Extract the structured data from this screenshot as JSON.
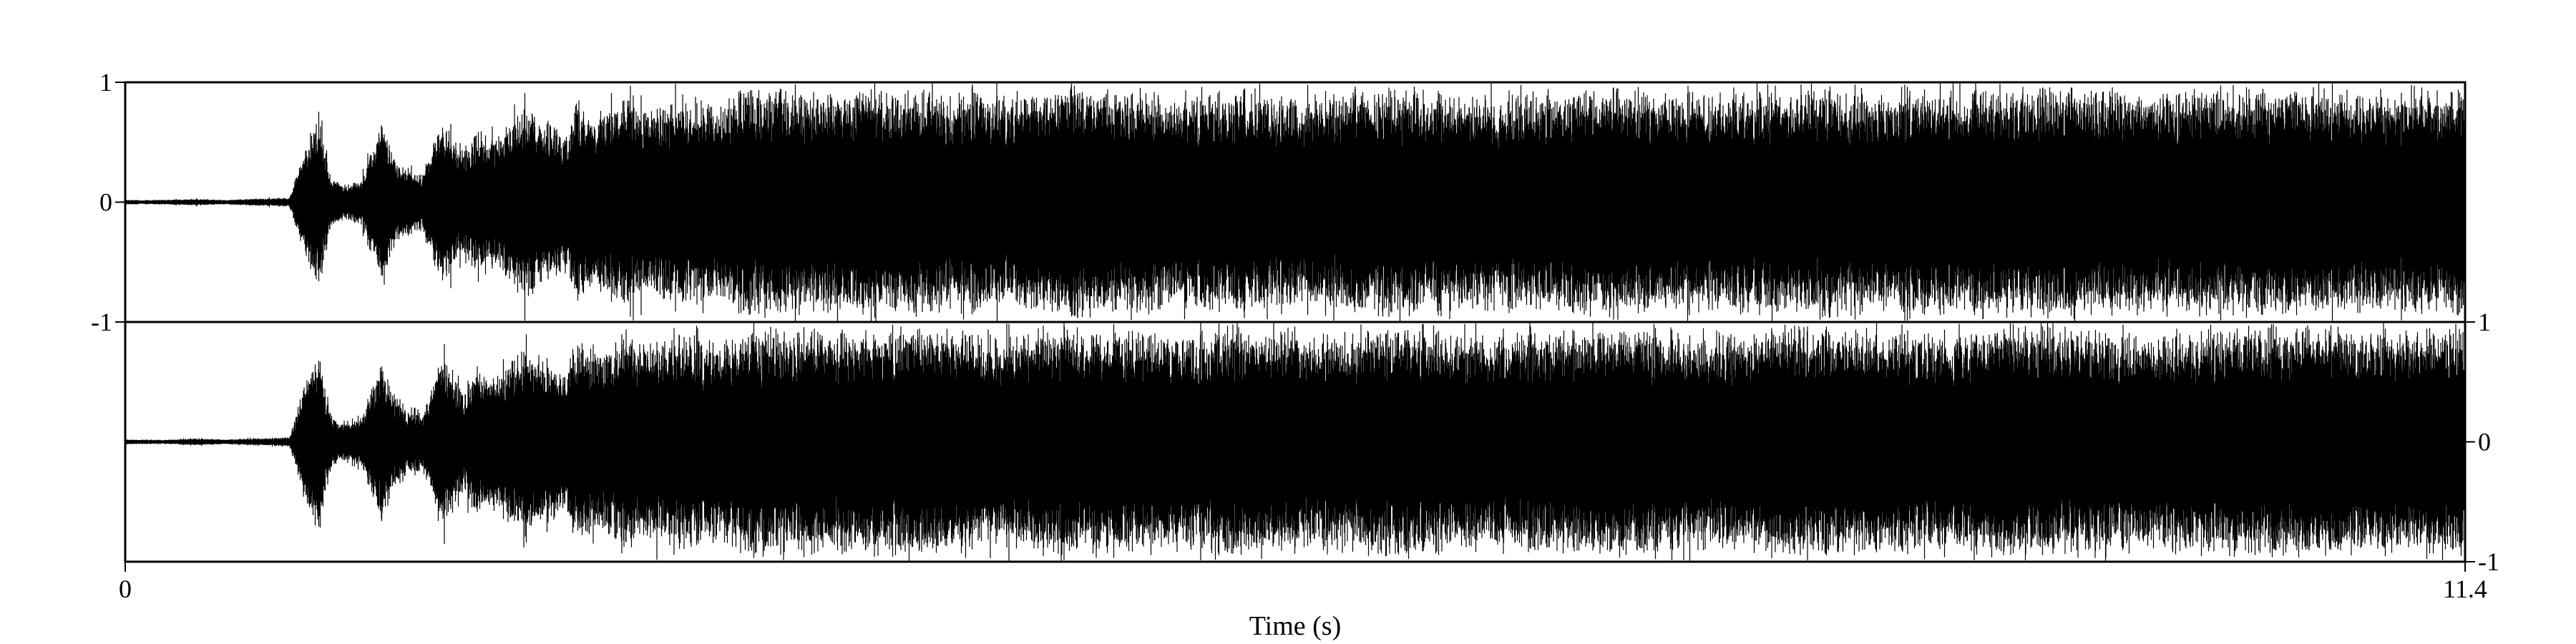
{
  "chart_data": {
    "type": "line",
    "chart_kind": "stereo-waveform",
    "xlabel": "Time (s)",
    "xlim": [
      0,
      11.4
    ],
    "x_ticks": [
      {
        "value": 0,
        "label": "0"
      },
      {
        "value": 11.4,
        "label": "11.4"
      }
    ],
    "channels": [
      {
        "ylim": [
          -1,
          1
        ],
        "tick_side": "left",
        "y_ticks": [
          {
            "value": 1,
            "label": "1"
          },
          {
            "value": 0,
            "label": "0"
          },
          {
            "value": -1,
            "label": "-1"
          }
        ]
      },
      {
        "ylim": [
          -1,
          1
        ],
        "tick_side": "right",
        "y_ticks": [
          {
            "value": 1,
            "label": "1"
          },
          {
            "value": 0,
            "label": "0"
          },
          {
            "value": -1,
            "label": "-1"
          }
        ]
      }
    ],
    "envelope": {
      "x": [
        0,
        0.2,
        0.35,
        0.5,
        0.6,
        0.65,
        0.8,
        0.9,
        0.95,
        0.98,
        1.0,
        1.05,
        1.15,
        1.25,
        1.3,
        1.35,
        1.45,
        1.55,
        1.62,
        1.65,
        1.7,
        1.8,
        1.95,
        2.05,
        2.15,
        2.2,
        2.3,
        2.4,
        2.45,
        2.5,
        2.6,
        2.7,
        2.8,
        2.9,
        2.95,
        3.0,
        3.5,
        3.8,
        4.0,
        4.3,
        4.6,
        4.9,
        5.2,
        5.5,
        5.8,
        6.0,
        6.3,
        6.6,
        7.0,
        7.3,
        7.6,
        8.0,
        8.3,
        8.6,
        9.0,
        9.4,
        9.8,
        10.2,
        10.6,
        11.0,
        11.4
      ],
      "amplitude": [
        0.02,
        0.02,
        0.03,
        0.02,
        0.03,
        0.03,
        0.04,
        0.6,
        0.75,
        0.4,
        0.25,
        0.15,
        0.2,
        0.7,
        0.45,
        0.3,
        0.25,
        0.75,
        0.5,
        0.45,
        0.6,
        0.55,
        0.85,
        0.7,
        0.6,
        0.9,
        0.75,
        0.9,
        0.95,
        0.8,
        0.85,
        0.92,
        0.9,
        0.85,
        0.9,
        1.0,
        0.95,
        0.98,
        0.97,
        0.9,
        1.0,
        0.95,
        0.92,
        1.0,
        0.9,
        0.95,
        1.0,
        0.92,
        0.96,
        1.0,
        0.93,
        0.97,
        1.0,
        0.92,
        0.98,
        1.0,
        0.94,
        0.97,
        1.0,
        0.95,
        1.0
      ]
    },
    "grid": false,
    "legend": "none"
  }
}
